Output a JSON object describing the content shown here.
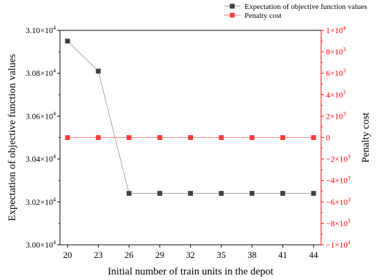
{
  "chart_data": {
    "type": "line",
    "xlabel": "Initial number of train units in the depot",
    "x": [
      20,
      23,
      26,
      29,
      32,
      35,
      38,
      41,
      44
    ],
    "x_tick_labels": [
      "20",
      "23",
      "26",
      "29",
      "32",
      "35",
      "38",
      "41",
      "44"
    ],
    "legend_placement": "top-right",
    "grid": false,
    "left_axis": {
      "label": "Expectation of objective function values",
      "ylim": [
        30000,
        31000
      ],
      "ticks": [
        30000,
        30200,
        30400,
        30600,
        30800,
        31000
      ],
      "tick_labels": [
        {
          "mantissa": "3.00",
          "exp": "4"
        },
        {
          "mantissa": "3.02",
          "exp": "4"
        },
        {
          "mantissa": "3.04",
          "exp": "4"
        },
        {
          "mantissa": "3.06",
          "exp": "4"
        },
        {
          "mantissa": "3.08",
          "exp": "4"
        },
        {
          "mantissa": "3.10",
          "exp": "4"
        }
      ],
      "color": "#000000"
    },
    "right_axis": {
      "label": "Penalty cost",
      "ylim": [
        -10000,
        10000
      ],
      "ticks": [
        -10000,
        -8000,
        -6000,
        -4000,
        -2000,
        0,
        2000,
        4000,
        6000,
        8000,
        10000
      ],
      "tick_labels": [
        {
          "mantissa": "−1",
          "mult": "×10",
          "exp": "4"
        },
        {
          "mantissa": "−8",
          "mult": "×10",
          "exp": "3"
        },
        {
          "mantissa": "−6",
          "mult": "×10",
          "exp": "3"
        },
        {
          "mantissa": "−4",
          "mult": "×10",
          "exp": "3"
        },
        {
          "mantissa": "−2",
          "mult": "×10",
          "exp": "3"
        },
        {
          "mantissa": "0",
          "mult": "",
          "exp": ""
        },
        {
          "mantissa": "2",
          "mult": "×10",
          "exp": "3"
        },
        {
          "mantissa": "4",
          "mult": "×10",
          "exp": "3"
        },
        {
          "mantissa": "6",
          "mult": "×10",
          "exp": "3"
        },
        {
          "mantissa": "8",
          "mult": "×10",
          "exp": "3"
        },
        {
          "mantissa": "1",
          "mult": "×10",
          "exp": "4"
        }
      ],
      "color": "#ff0000"
    },
    "series": [
      {
        "name": "Expectation of objective function values",
        "axis": "left",
        "color": "#404040",
        "line_color": "#a0a0a0",
        "marker": "square",
        "values": [
          30950,
          30810,
          30240,
          30240,
          30240,
          30240,
          30240,
          30240,
          30240
        ]
      },
      {
        "name": "Penalty cost",
        "axis": "right",
        "color": "#ff3b3b",
        "line_color": "#ff8080",
        "marker": "square",
        "values": [
          0,
          0,
          0,
          0,
          0,
          0,
          0,
          0,
          0
        ]
      }
    ]
  }
}
